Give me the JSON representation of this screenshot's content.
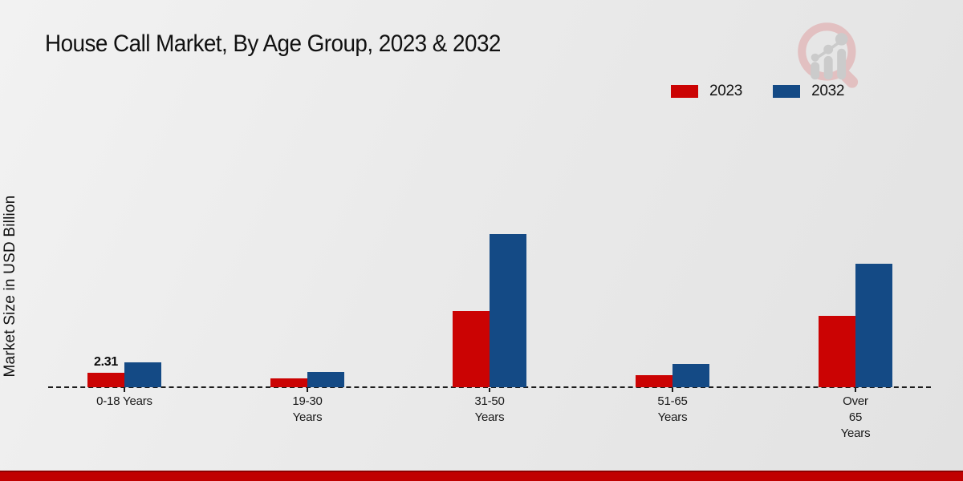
{
  "chart_data": {
    "type": "bar",
    "title": "House Call Market, By Age Group, 2023 & 2032",
    "ylabel": "Market Size in USD Billion",
    "xlabel": "",
    "categories": [
      "0-18 Years",
      "19-30 Years",
      "31-50 Years",
      "51-65 Years",
      "Over 65 Years"
    ],
    "category_label_lines": [
      [
        "0-18 Years"
      ],
      [
        "19-30",
        "Years"
      ],
      [
        "31-50",
        "Years"
      ],
      [
        "51-65",
        "Years"
      ],
      [
        "Over",
        "65",
        "Years"
      ]
    ],
    "series": [
      {
        "name": "2023",
        "color": "#cb0303",
        "values": [
          2.31,
          1.4,
          11.9,
          1.9,
          11.1
        ]
      },
      {
        "name": "2032",
        "color": "#144a85",
        "values": [
          3.9,
          2.4,
          23.9,
          3.6,
          19.2
        ]
      }
    ],
    "value_labels": [
      {
        "series_index": 0,
        "group_index": 0,
        "text": "2.31"
      }
    ],
    "ylim": [
      0,
      25
    ],
    "grid": false,
    "y_axis_ticks_visible": false,
    "baseline_style": "dashed",
    "legend_position": "top-right"
  },
  "colors": {
    "series_2023_red": "#cb0303",
    "series_2032_blue": "#144a85",
    "footer_red": "#c00000",
    "footer_red_dark": "#8e0000",
    "baseline_black": "#1c1c1c",
    "background_gray": "#e9e9e9"
  },
  "logo": {
    "name": "magnifier-bar-chart-watermark",
    "ring_color": "#e2bcbd",
    "bars_color": "#c9c9c9"
  }
}
